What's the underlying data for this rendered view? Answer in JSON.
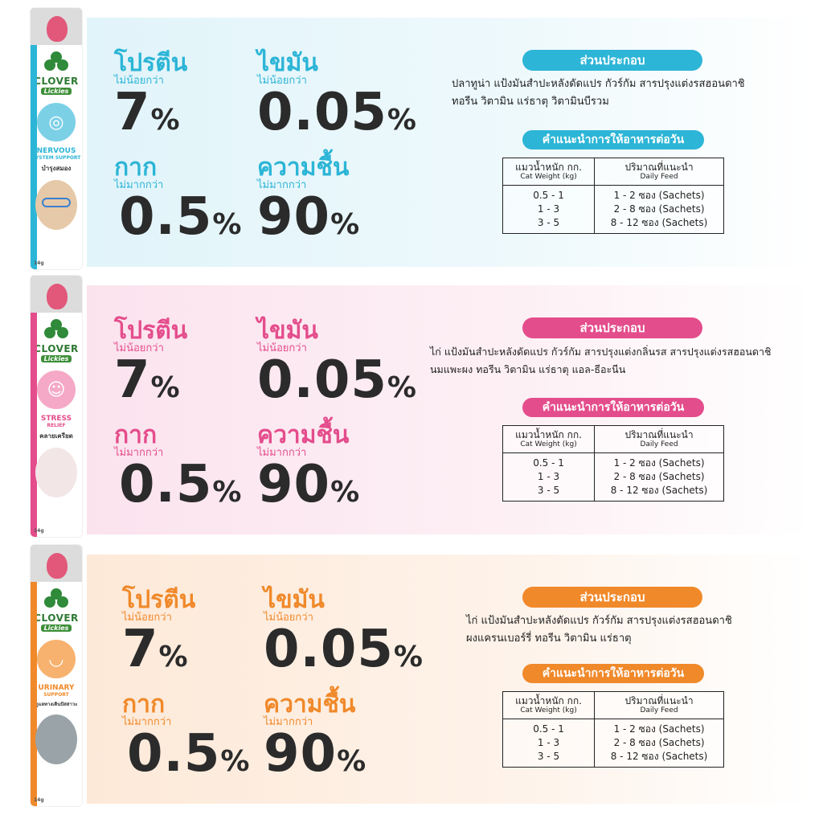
{
  "colors": {
    "blue": "#2cb5d6",
    "pink": "#e44d8c",
    "orange": "#f0892a",
    "blue_bg": "#e4f6fb",
    "pink_bg": "#fce8f0",
    "orange_bg": "#fdeee0",
    "value_text": "#2b2b2b"
  },
  "common": {
    "protein": "โปรตีน",
    "fat": "ไขมัน",
    "fiber": "กาก",
    "moisture": "ความชื้น",
    "min_label": "ไม่น้อยกว่า",
    "max_label": "ไม่มากกว่า",
    "protein_value": "7",
    "fat_value": "0.05",
    "fiber_value": "0.5",
    "moisture_value": "90",
    "percent": "%",
    "ingredients_title": "ส่วนประกอบ",
    "feeding_title": "คำแนะนำการให้อาหารต่อวัน",
    "table_head_weight_th": "แมวน้ำหนัก กก.",
    "table_head_weight_en": "Cat Weight (kg)",
    "table_head_amount_th": "ปริมาณที่แนะนำ",
    "table_head_amount_en": "Daily Feed",
    "weights": [
      "0.5 - 1",
      "1 - 3",
      "3 - 5"
    ],
    "amounts": [
      "1 - 2 ซอง (Sachets)",
      "2 - 8 ซอง (Sachets)",
      "8 - 12 ซอง (Sachets)"
    ]
  },
  "brand": {
    "name": "CLOVER",
    "sub": "Lickies"
  },
  "products": [
    {
      "name": "NERVOUS",
      "name_sub": "SYSTEM SUPPORT",
      "thai": "บำรุงสมอง",
      "icon": "brain-icon",
      "weight": "14g",
      "ingredients_line1": "ปลาทูน่า แป้งมันสำปะหลังดัดแปร กัวร์กัม สารปรุงแต่งรสฮอนดาชิ",
      "ingredients_line2": "ทอรีน วิตามิน แร่ธาตุ วิตามินบีรวม"
    },
    {
      "name": "STRESS",
      "name_sub": "RELIEF",
      "thai": "คลายเครียด",
      "icon": "smile-icon",
      "weight": "14g",
      "ingredients_line1": "ไก่ แป้งมันสำปะหลังดัดแปร กัวร์กัม สารปรุงแต่งกลิ่นรส สารปรุงแต่งรสฮอนดาชิ",
      "ingredients_line2": "นมแพะผง ทอรีน วิตามิน แร่ธาตุ แอล-ธีอะนีน"
    },
    {
      "name": "URINARY",
      "name_sub": "SUPPORT",
      "thai": "ดูแลทางเดินปัสสาวะ",
      "icon": "bladder-icon",
      "weight": "14g",
      "ingredients_line1": "ไก่ แป้งมันสำปะหลังดัดแปร กัวร์กัม สารปรุงแต่งรสฮอนดาชิ",
      "ingredients_line2": "ผงแครนเบอร์รี่ ทอรีน วิตามิน แร่ธาตุ"
    }
  ]
}
